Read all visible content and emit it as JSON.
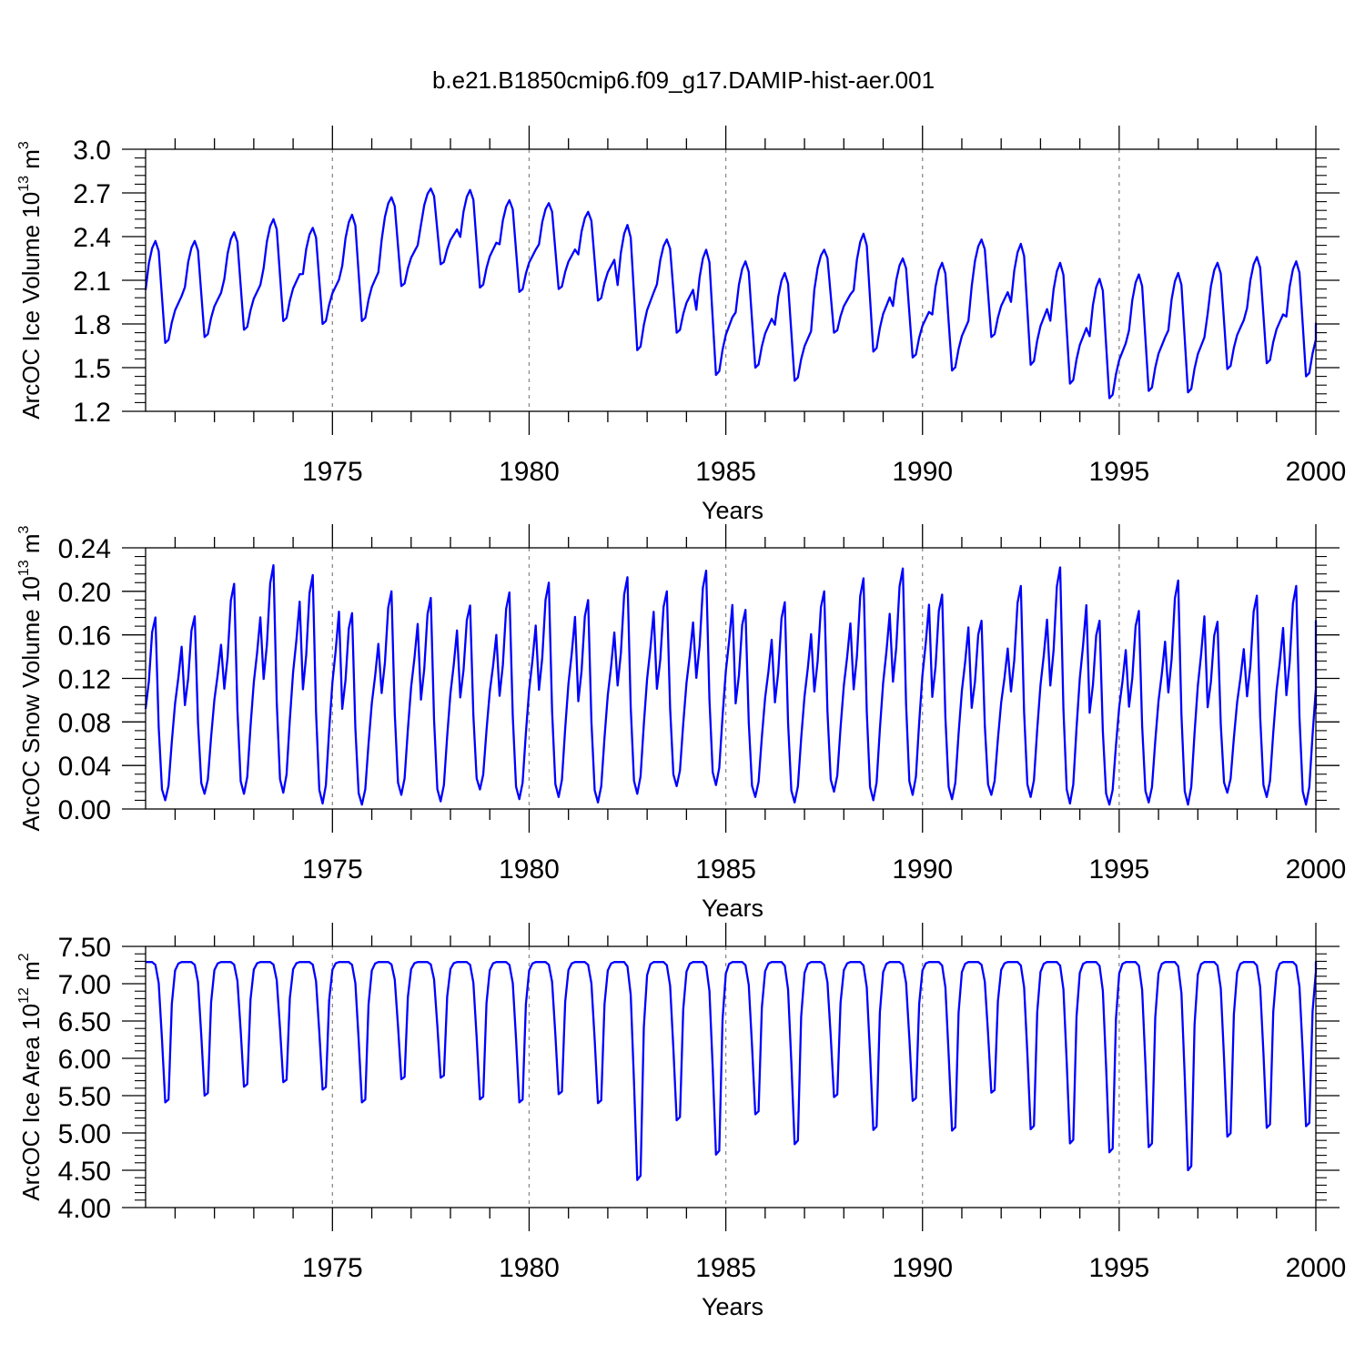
{
  "chart_data": {
    "title": "b.e21.B1850cmip6.f09_g17.DAMIP-hist-aer.001",
    "line_color": "#0000ff",
    "x_range": [
      1970.25,
      2000.0
    ],
    "x_ticks": [
      1975,
      1980,
      1985,
      1990,
      1995,
      2000
    ],
    "x_tick_labels": [
      "1975",
      "1980",
      "1985",
      "1990",
      "1995",
      "2000"
    ],
    "x_label": "Years",
    "sample_rate": "monthly (12 points per year)",
    "panels": [
      {
        "id": "ice-volume",
        "type": "line",
        "ylabel_main": "ArcOC Ice Volume 10",
        "ylabel_exp": "13",
        "ylabel_unit": " m",
        "ylabel_unit_exp": "3",
        "ylim": [
          1.2,
          3.0
        ],
        "y_ticks": [
          1.2,
          1.5,
          1.8,
          2.1,
          2.4,
          2.7,
          3.0
        ],
        "y_tick_labels": [
          "1.2",
          "1.5",
          "1.8",
          "2.1",
          "2.4",
          "2.7",
          "3.0"
        ],
        "seasonal_shape": [
          0.52,
          0.78,
          0.93,
          1.0,
          0.9,
          0.45,
          0.0,
          0.03,
          0.2,
          0.32,
          0.39,
          0.46
        ],
        "annual_max": [
          2.37,
          2.37,
          2.43,
          2.52,
          2.46,
          2.55,
          2.67,
          2.73,
          2.72,
          2.65,
          2.63,
          2.57,
          2.48,
          2.38,
          2.31,
          2.23,
          2.15,
          2.31,
          2.42,
          2.25,
          2.22,
          2.38,
          2.35,
          2.22,
          2.11,
          2.14,
          2.15,
          2.22,
          2.26,
          2.23
        ],
        "annual_min": [
          1.67,
          1.71,
          1.76,
          1.82,
          1.8,
          1.82,
          2.06,
          2.21,
          2.05,
          2.02,
          2.04,
          1.96,
          1.62,
          1.74,
          1.45,
          1.5,
          1.41,
          1.74,
          1.61,
          1.57,
          1.48,
          1.71,
          1.52,
          1.39,
          1.29,
          1.34,
          1.33,
          1.49,
          1.53,
          1.44
        ],
        "series": [
          {
            "name": "ArcOC Ice Volume",
            "values": []
          }
        ]
      },
      {
        "id": "snow-volume",
        "type": "line",
        "ylabel_main": "ArcOC Snow Volume 10",
        "ylabel_exp": "13",
        "ylabel_unit": " m",
        "ylabel_unit_exp": "3",
        "ylim": [
          0.0,
          0.24
        ],
        "y_ticks": [
          0.0,
          0.04,
          0.08,
          0.12,
          0.16,
          0.2,
          0.24
        ],
        "y_tick_labels": [
          "0.00",
          "0.04",
          "0.08",
          "0.12",
          "0.16",
          "0.20",
          "0.24"
        ],
        "seasonal_shape": [
          0.5,
          0.65,
          0.92,
          1.0,
          0.4,
          0.06,
          0.0,
          0.08,
          0.32,
          0.53,
          0.67,
          0.84
        ],
        "annual_max": [
          0.176,
          0.177,
          0.207,
          0.224,
          0.215,
          0.18,
          0.2,
          0.194,
          0.187,
          0.199,
          0.208,
          0.192,
          0.213,
          0.2,
          0.219,
          0.183,
          0.19,
          0.2,
          0.212,
          0.221,
          0.197,
          0.173,
          0.205,
          0.222,
          0.173,
          0.182,
          0.21,
          0.172,
          0.196,
          0.205
        ],
        "annual_min": [
          0.008,
          0.014,
          0.014,
          0.015,
          0.005,
          0.004,
          0.013,
          0.007,
          0.018,
          0.009,
          0.011,
          0.006,
          0.014,
          0.021,
          0.022,
          0.011,
          0.006,
          0.016,
          0.008,
          0.013,
          0.009,
          0.013,
          0.011,
          0.005,
          0.004,
          0.006,
          0.004,
          0.015,
          0.011,
          0.004
        ],
        "series": [
          {
            "name": "ArcOC Snow Volume",
            "values": []
          }
        ]
      },
      {
        "id": "ice-area",
        "type": "line",
        "ylabel_main": "ArcOC Ice Area 10",
        "ylabel_exp": "12",
        "ylabel_unit": " m",
        "ylabel_unit_exp": "2",
        "ylim": [
          4.0,
          7.5
        ],
        "y_ticks": [
          4.0,
          4.5,
          5.0,
          5.5,
          6.0,
          6.5,
          7.0,
          7.5
        ],
        "y_tick_labels": [
          "4.00",
          "4.50",
          "5.00",
          "5.50",
          "6.00",
          "6.50",
          "7.00",
          "7.50"
        ],
        "seasonal_shape": [
          1.0,
          1.0,
          1.0,
          0.98,
          0.85,
          0.45,
          0.0,
          0.02,
          0.7,
          0.94,
          0.99,
          1.0
        ],
        "annual_max": [
          7.29,
          7.29,
          7.29,
          7.29,
          7.29,
          7.29,
          7.29,
          7.29,
          7.29,
          7.29,
          7.29,
          7.29,
          7.29,
          7.29,
          7.29,
          7.29,
          7.29,
          7.29,
          7.29,
          7.29,
          7.29,
          7.29,
          7.29,
          7.29,
          7.29,
          7.29,
          7.29,
          7.29,
          7.29,
          7.29
        ],
        "annual_min": [
          5.41,
          5.5,
          5.62,
          5.68,
          5.58,
          5.41,
          5.72,
          5.74,
          5.45,
          5.41,
          5.52,
          5.4,
          4.37,
          5.17,
          4.71,
          5.25,
          4.85,
          5.48,
          5.04,
          5.43,
          5.03,
          5.54,
          5.05,
          4.86,
          4.74,
          4.81,
          4.5,
          4.95,
          5.07,
          5.09
        ],
        "series": [
          {
            "name": "ArcOC Ice Area",
            "values": []
          }
        ]
      }
    ]
  }
}
